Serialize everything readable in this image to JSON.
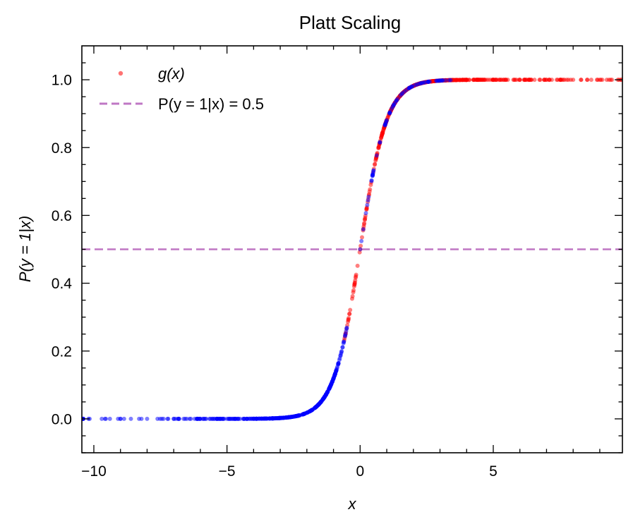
{
  "chart_data": {
    "type": "scatter",
    "title": "Platt Scaling",
    "xlabel": "x",
    "ylabel": "P(y = 1|x)",
    "xlim": [
      -10.45,
      9.85
    ],
    "ylim": [
      -0.1,
      1.1
    ],
    "xticks": [
      -10,
      -5,
      0,
      5
    ],
    "xtick_labels": [
      "−10",
      "−5",
      "0",
      "5"
    ],
    "yticks": [
      0.0,
      0.2,
      0.4,
      0.6,
      0.8,
      1.0
    ],
    "ytick_labels": [
      "0.0",
      "0.2",
      "0.4",
      "0.6",
      "0.8",
      "1.0"
    ],
    "grid": false,
    "legend_position": "top-left",
    "legend": [
      {
        "label": "g(x)",
        "marker": "dot",
        "color": "#ff0000"
      },
      {
        "label": "P(y = 1|x) = 0.5",
        "marker": "dashed-line",
        "color": "#bf77c4"
      }
    ],
    "reference_line": {
      "y": 0.5,
      "style": "dashed",
      "color": "#bf77c4"
    },
    "curve": {
      "function": "sigmoid",
      "a": 2.0,
      "b": 0.0
    },
    "series": [
      {
        "name": "g(x)",
        "class": "positive",
        "color": "#ff0000",
        "x_range": [
          -0.6,
          9.8
        ],
        "count": 500,
        "sample_x": [
          -0.6,
          -0.3,
          0,
          0.2,
          0.4,
          0.6,
          0.8,
          1.0,
          1.5,
          2.0,
          2.5,
          3.0,
          4.0,
          5.0,
          6.0,
          7.0,
          8.0,
          9.0,
          9.8
        ],
        "sample_y": [
          0.23,
          0.35,
          0.5,
          0.6,
          0.69,
          0.77,
          0.83,
          0.88,
          0.95,
          0.98,
          0.99,
          1.0,
          1.0,
          1.0,
          1.0,
          1.0,
          1.0,
          1.0,
          1.0
        ]
      },
      {
        "name": "",
        "class": "negative",
        "color": "#0000ff",
        "x_range": [
          -10.4,
          3.4
        ],
        "count": 500,
        "sample_x": [
          -10.4,
          -9.0,
          -8.0,
          -7.0,
          -6.0,
          -5.0,
          -4.0,
          -3.0,
          -2.0,
          -1.5,
          -1.0,
          -0.5,
          0,
          0.5,
          1.0,
          2.3,
          3.4
        ],
        "sample_y": [
          0.0,
          0.0,
          0.0,
          0.0,
          0.0,
          0.0,
          0.0,
          0.0,
          0.02,
          0.05,
          0.12,
          0.27,
          0.5,
          0.73,
          0.88,
          0.99,
          1.0
        ]
      }
    ]
  }
}
